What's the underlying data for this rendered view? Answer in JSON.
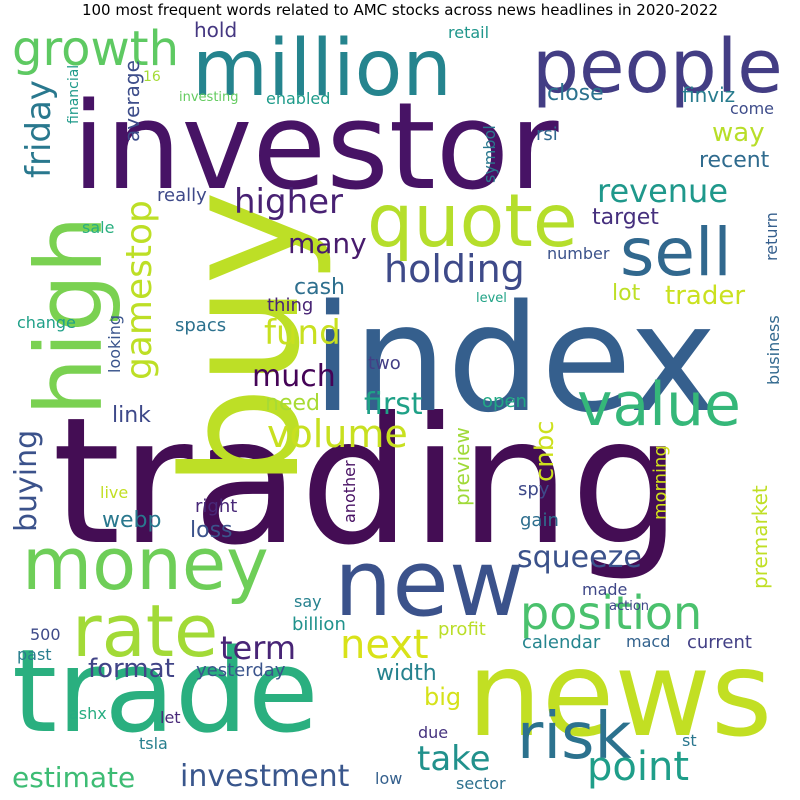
{
  "title": "100 most frequent words related to AMC stocks across news headlines in 2020-2022",
  "palette": "viridis",
  "words": [
    {
      "text": "trading",
      "color": "#440d54"
    },
    {
      "text": "index",
      "color": "#355f8d"
    },
    {
      "text": "investor",
      "color": "#471365"
    },
    {
      "text": "buy",
      "color": "#bddf26"
    },
    {
      "text": "news",
      "color": "#c2df23"
    },
    {
      "text": "trade",
      "color": "#2aaf7f"
    },
    {
      "text": "money",
      "color": "#6ece58"
    },
    {
      "text": "new",
      "color": "#3b528b"
    },
    {
      "text": "high",
      "color": "#7ad151"
    },
    {
      "text": "million",
      "color": "#25848e"
    },
    {
      "text": "people",
      "color": "#433d84"
    },
    {
      "text": "quote",
      "color": "#b5de2b"
    },
    {
      "text": "sell",
      "color": "#31688e"
    },
    {
      "text": "value",
      "color": "#35b779"
    },
    {
      "text": "rate",
      "color": "#a2da37"
    },
    {
      "text": "risk",
      "color": "#2c728e"
    },
    {
      "text": "position",
      "color": "#4ac16d"
    },
    {
      "text": "growth",
      "color": "#5ec962"
    },
    {
      "text": "holding",
      "color": "#3e4a89"
    },
    {
      "text": "gamestop",
      "color": "#bddf26"
    },
    {
      "text": "volume",
      "color": "#c8e020"
    },
    {
      "text": "next",
      "color": "#d8e219"
    },
    {
      "text": "point",
      "color": "#1f9e89"
    },
    {
      "text": "revenue",
      "color": "#1f988b"
    },
    {
      "text": "higher",
      "color": "#482173"
    },
    {
      "text": "fund",
      "color": "#c8e020"
    },
    {
      "text": "friday",
      "color": "#29788e"
    },
    {
      "text": "investment",
      "color": "#39568c"
    },
    {
      "text": "estimate",
      "color": "#3dbc74"
    },
    {
      "text": "take",
      "color": "#21918c"
    },
    {
      "text": "term",
      "color": "#482576"
    },
    {
      "text": "squeeze",
      "color": "#3b528b"
    },
    {
      "text": "much",
      "color": "#450457"
    },
    {
      "text": "first",
      "color": "#1fa187"
    },
    {
      "text": "many",
      "color": "#481b6d"
    },
    {
      "text": "buying",
      "color": "#3b528b"
    },
    {
      "text": "trader",
      "color": "#cae11f"
    },
    {
      "text": "format",
      "color": "#414487"
    },
    {
      "text": "cnbc",
      "color": "#cde11d"
    },
    {
      "text": "premarket",
      "color": "#c0df25"
    },
    {
      "text": "cash",
      "color": "#2e6f8e"
    },
    {
      "text": "need",
      "color": "#a8db34"
    },
    {
      "text": "width",
      "color": "#26828e"
    },
    {
      "text": "big",
      "color": "#d5e21a"
    },
    {
      "text": "way",
      "color": "#b8de29"
    },
    {
      "text": "close",
      "color": "#2c728e"
    },
    {
      "text": "recent",
      "color": "#2f6b8e"
    },
    {
      "text": "link",
      "color": "#3e4989"
    },
    {
      "text": "lot",
      "color": "#bddf26"
    },
    {
      "text": "target",
      "color": "#46307e"
    },
    {
      "text": "webp",
      "color": "#2a788e"
    },
    {
      "text": "loss",
      "color": "#3b528b"
    },
    {
      "text": "preview",
      "color": "#a0da39"
    },
    {
      "text": "average",
      "color": "#3d4d8a"
    },
    {
      "text": "hold",
      "color": "#453781"
    },
    {
      "text": "finviz",
      "color": "#287c8e"
    },
    {
      "text": "really",
      "color": "#3e4989"
    },
    {
      "text": "yesterday",
      "color": "#3a548c"
    },
    {
      "text": "current",
      "color": "#423f85"
    },
    {
      "text": "calendar",
      "color": "#25858e"
    },
    {
      "text": "morning",
      "color": "#d2e21b"
    },
    {
      "text": "gain",
      "color": "#2e6e8e"
    },
    {
      "text": "right",
      "color": "#482878"
    },
    {
      "text": "profit",
      "color": "#bade28"
    },
    {
      "text": "billion",
      "color": "#20928c"
    },
    {
      "text": "business",
      "color": "#31688e"
    },
    {
      "text": "return",
      "color": "#355f8d"
    },
    {
      "text": "looking",
      "color": "#3a548c"
    },
    {
      "text": "spacs",
      "color": "#2c718e"
    },
    {
      "text": "thing",
      "color": "#482475"
    },
    {
      "text": "open",
      "color": "#22a785"
    },
    {
      "text": "spy",
      "color": "#3e4989"
    },
    {
      "text": "two",
      "color": "#433e85"
    },
    {
      "text": "another",
      "color": "#471063"
    },
    {
      "text": "made",
      "color": "#3f4788"
    },
    {
      "text": "say",
      "color": "#26818e"
    },
    {
      "text": "sale",
      "color": "#29af7f"
    },
    {
      "text": "change",
      "color": "#1fa088"
    },
    {
      "text": "retail",
      "color": "#1f968b"
    },
    {
      "text": "symbol",
      "color": "#2a788e"
    },
    {
      "text": "rsi",
      "color": "#31688e"
    },
    {
      "text": "come",
      "color": "#3e4c8a"
    },
    {
      "text": "enabled",
      "color": "#1e9b8a"
    },
    {
      "text": "financial",
      "color": "#1f9a8a"
    },
    {
      "text": "number",
      "color": "#3b528b"
    },
    {
      "text": "live",
      "color": "#c2df23"
    },
    {
      "text": "macd",
      "color": "#33628d"
    },
    {
      "text": "500",
      "color": "#3e4a89"
    },
    {
      "text": "past",
      "color": "#287d8e"
    },
    {
      "text": "let",
      "color": "#482979"
    },
    {
      "text": "tsla",
      "color": "#277f8e"
    },
    {
      "text": "due",
      "color": "#46337f"
    },
    {
      "text": "low",
      "color": "#35608d"
    },
    {
      "text": "sector",
      "color": "#2d708e"
    },
    {
      "text": "st",
      "color": "#2a768e"
    },
    {
      "text": "ashx",
      "color": "#26ad81"
    },
    {
      "text": "16",
      "color": "#a5db36"
    },
    {
      "text": "investing",
      "color": "#63cb5f"
    },
    {
      "text": "level",
      "color": "#20a386"
    },
    {
      "text": "action",
      "color": "#3f4788"
    }
  ]
}
